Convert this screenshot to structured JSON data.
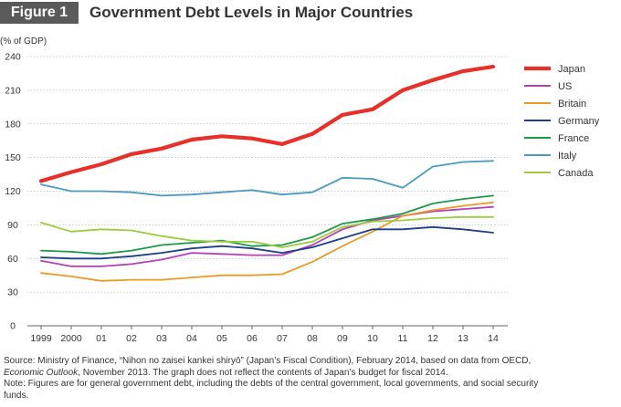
{
  "figure": {
    "badge": "Figure 1",
    "title": "Government Debt Levels in Major Countries"
  },
  "chart_data": {
    "type": "line",
    "title": "Government Debt Levels in Major Countries",
    "ylabel": "(% of GDP)",
    "xlabel": "",
    "ylim": [
      0,
      240
    ],
    "yticks": [
      0,
      30,
      60,
      90,
      120,
      150,
      180,
      210,
      240
    ],
    "categories": [
      "1999",
      "2000",
      "01",
      "02",
      "03",
      "04",
      "05",
      "06",
      "07",
      "08",
      "09",
      "10",
      "11",
      "12",
      "13",
      "14"
    ],
    "grid": true,
    "legend_position": "top-right",
    "series": [
      {
        "name": "Japan",
        "color": "#e8302a",
        "emphasis": true,
        "values": [
          129,
          137,
          144,
          153,
          158,
          166,
          169,
          167,
          162,
          171,
          188,
          193,
          210,
          219,
          227,
          231
        ]
      },
      {
        "name": "US",
        "color": "#b53fb8",
        "values": [
          58,
          53,
          53,
          55,
          59,
          65,
          64,
          63,
          63,
          72,
          86,
          94,
          98,
          102,
          104,
          106
        ]
      },
      {
        "name": "Britain",
        "color": "#eb9a26",
        "values": [
          47,
          44,
          40,
          41,
          41,
          43,
          45,
          45,
          46,
          57,
          71,
          84,
          98,
          103,
          107,
          110
        ]
      },
      {
        "name": "Germany",
        "color": "#1d3f86",
        "values": [
          61,
          60,
          60,
          62,
          65,
          69,
          71,
          69,
          65,
          70,
          78,
          86,
          86,
          88,
          86,
          83
        ]
      },
      {
        "name": "France",
        "color": "#1c9a4a",
        "values": [
          67,
          66,
          64,
          67,
          72,
          74,
          76,
          71,
          72,
          79,
          91,
          95,
          100,
          109,
          113,
          116
        ]
      },
      {
        "name": "Italy",
        "color": "#4a9ac1",
        "values": [
          126,
          120,
          120,
          119,
          116,
          117,
          119,
          121,
          117,
          119,
          132,
          131,
          123,
          142,
          146,
          147
        ]
      },
      {
        "name": "Canada",
        "color": "#9ccc3c",
        "values": [
          92,
          84,
          86,
          85,
          80,
          76,
          75,
          75,
          70,
          75,
          88,
          93,
          94,
          96,
          97,
          97
        ]
      }
    ]
  },
  "footer": {
    "source_line1": "Source: Ministry of Finance, “Nihon no zaisei kankei shiryō” (Japan’s Fiscal Condition), February 2014, based on data from OECD,",
    "source_line2_italic": "Economic Outlook",
    "source_line2_rest": ", November 2013. The graph does not reflect the contents of Japan’s budget for fiscal 2014.",
    "note_line1": "Note: Figures are for general government debt, including the debts of the central government, local governments, and social security",
    "note_line2": "funds."
  }
}
